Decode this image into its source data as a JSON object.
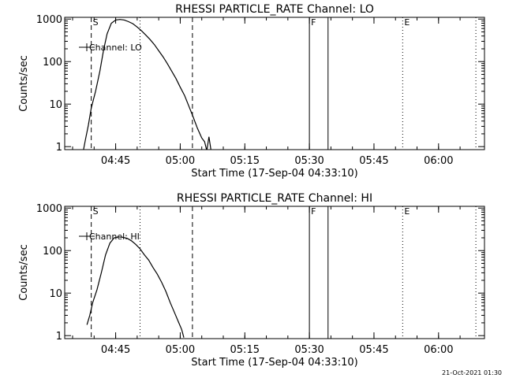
{
  "timestamp": "21-Oct-2021 01:30",
  "chart_data": [
    {
      "type": "line",
      "title": "RHESSI PARTICLE_RATE Channel: LO",
      "xlabel": "Start Time (17-Sep-04 04:33:10)",
      "ylabel": "Counts/sec",
      "y_scale": "log",
      "ylim": [
        0.85,
        1100
      ],
      "xlim": [
        "04:33:10",
        "06:10:40"
      ],
      "x_ticks": [
        "04:45",
        "05:00",
        "05:15",
        "05:30",
        "05:45",
        "06:00"
      ],
      "y_ticks": [
        "1",
        "10",
        "100",
        "1000"
      ],
      "grid": false,
      "legend": {
        "position": "top-left",
        "entries": [
          "Channel: LO"
        ]
      },
      "markers": [
        {
          "label": "S",
          "time": "04:39:20",
          "style": "dashed"
        },
        {
          "label": "",
          "time": "04:50:40",
          "style": "dotted"
        },
        {
          "label": "",
          "time": "05:02:50",
          "style": "dashed"
        },
        {
          "label": "F",
          "time": "05:30:00",
          "style": "solid"
        },
        {
          "label": "",
          "time": "05:34:20",
          "style": "solid"
        },
        {
          "label": "E",
          "time": "05:51:40",
          "style": "dotted"
        },
        {
          "label": "",
          "time": "06:08:40",
          "style": "dotted"
        }
      ],
      "series": [
        {
          "name": "Channel: LO",
          "points": [
            [
              "04:37:30",
              0.8
            ],
            [
              "04:38:00",
              1.5
            ],
            [
              "04:38:40",
              3.2
            ],
            [
              "04:39:20",
              8
            ],
            [
              "04:40:20",
              20
            ],
            [
              "04:41:20",
              60
            ],
            [
              "04:42:10",
              180
            ],
            [
              "04:43:00",
              450
            ],
            [
              "04:44:00",
              800
            ],
            [
              "04:45:00",
              950
            ],
            [
              "04:46:00",
              980
            ],
            [
              "04:47:00",
              950
            ],
            [
              "04:48:00",
              870
            ],
            [
              "04:49:00",
              780
            ],
            [
              "04:50:00",
              650
            ],
            [
              "04:51:00",
              530
            ],
            [
              "04:52:00",
              420
            ],
            [
              "04:53:00",
              330
            ],
            [
              "04:54:00",
              250
            ],
            [
              "04:55:00",
              180
            ],
            [
              "04:56:00",
              130
            ],
            [
              "04:57:00",
              90
            ],
            [
              "04:58:00",
              60
            ],
            [
              "04:59:00",
              40
            ],
            [
              "05:00:00",
              25
            ],
            [
              "05:01:00",
              16
            ],
            [
              "05:02:00",
              9
            ],
            [
              "05:03:00",
              5
            ],
            [
              "05:04:00",
              2.7
            ],
            [
              "05:05:00",
              1.6
            ],
            [
              "05:05:40",
              1.3
            ],
            [
              "05:06:10",
              0.8
            ],
            [
              "05:06:40",
              1.7
            ],
            [
              "05:07:10",
              0.8
            ]
          ]
        }
      ]
    },
    {
      "type": "line",
      "title": "RHESSI PARTICLE_RATE Channel: HI",
      "xlabel": "Start Time (17-Sep-04 04:33:10)",
      "ylabel": "Counts/sec",
      "y_scale": "log",
      "ylim": [
        0.85,
        1100
      ],
      "xlim": [
        "04:33:10",
        "06:10:40"
      ],
      "x_ticks": [
        "04:45",
        "05:00",
        "05:15",
        "05:30",
        "05:45",
        "06:00"
      ],
      "y_ticks": [
        "1",
        "10",
        "100",
        "1000"
      ],
      "grid": false,
      "legend": {
        "position": "top-left",
        "entries": [
          "Channel: HI"
        ]
      },
      "markers": [
        {
          "label": "S",
          "time": "04:39:20",
          "style": "dashed"
        },
        {
          "label": "",
          "time": "04:50:40",
          "style": "dotted"
        },
        {
          "label": "",
          "time": "05:02:50",
          "style": "dashed"
        },
        {
          "label": "F",
          "time": "05:30:00",
          "style": "solid"
        },
        {
          "label": "",
          "time": "05:34:20",
          "style": "solid"
        },
        {
          "label": "E",
          "time": "05:51:40",
          "style": "dotted"
        },
        {
          "label": "",
          "time": "06:08:40",
          "style": "dotted"
        }
      ],
      "series": [
        {
          "name": "Channel: HI",
          "points": [
            [
              "04:38:20",
              1.8
            ],
            [
              "04:39:00",
              3
            ],
            [
              "04:39:40",
              6
            ],
            [
              "04:40:40",
              12
            ],
            [
              "04:41:40",
              30
            ],
            [
              "04:42:40",
              80
            ],
            [
              "04:43:40",
              150
            ],
            [
              "04:44:40",
              200
            ],
            [
              "04:45:40",
              210
            ],
            [
              "04:46:40",
              205
            ],
            [
              "04:47:40",
              195
            ],
            [
              "04:48:40",
              170
            ],
            [
              "04:49:40",
              140
            ],
            [
              "04:50:40",
              110
            ],
            [
              "04:51:40",
              80
            ],
            [
              "04:52:40",
              60
            ],
            [
              "04:53:40",
              40
            ],
            [
              "04:54:40",
              28
            ],
            [
              "04:55:40",
              18
            ],
            [
              "04:56:40",
              11
            ],
            [
              "04:57:40",
              6
            ],
            [
              "04:58:40",
              3.5
            ],
            [
              "04:59:40",
              2
            ],
            [
              "05:00:20",
              1.4
            ],
            [
              "05:00:50",
              0.9
            ]
          ]
        }
      ]
    }
  ]
}
